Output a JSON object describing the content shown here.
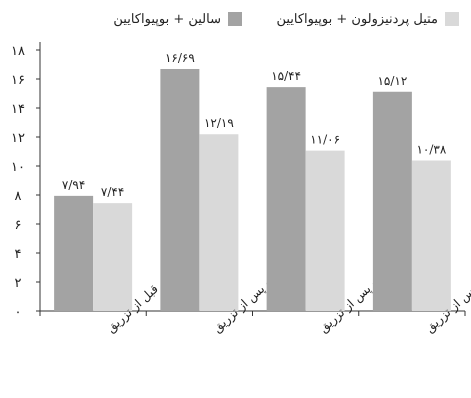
{
  "chart_data": {
    "type": "bar",
    "categories": [
      "قبل از تزریق",
      "یک ماه پس از تزریق",
      "دو ماه پس از تزریق",
      "سه ماه پس از تزریق"
    ],
    "series": [
      {
        "name": "سالین + بوپیواکایین",
        "values": [
          7.94,
          16.69,
          15.44,
          15.12
        ],
        "value_labels": [
          "۷/۹۴",
          "۱۶/۶۹",
          "۱۵/۴۴",
          "۱۵/۱۲"
        ],
        "color": "#a3a3a3"
      },
      {
        "name": "متیل پردنیزولون + بوپیواکایین",
        "values": [
          7.44,
          12.19,
          11.06,
          10.38
        ],
        "value_labels": [
          "۷/۴۴",
          "۱۲/۱۹",
          "۱۱/۰۶",
          "۱۰/۳۸"
        ],
        "color": "#d9d9d9"
      }
    ],
    "yticks": [
      0,
      2,
      4,
      6,
      8,
      10,
      12,
      14,
      16,
      18
    ],
    "ytick_labels": [
      "۰",
      "۲",
      "۴",
      "۶",
      "۸",
      "۱۰",
      "۱۲",
      "۱۴",
      "۱۶",
      "۱۸"
    ],
    "ylim": [
      0,
      18
    ],
    "grid": false,
    "legend_position": "top"
  }
}
